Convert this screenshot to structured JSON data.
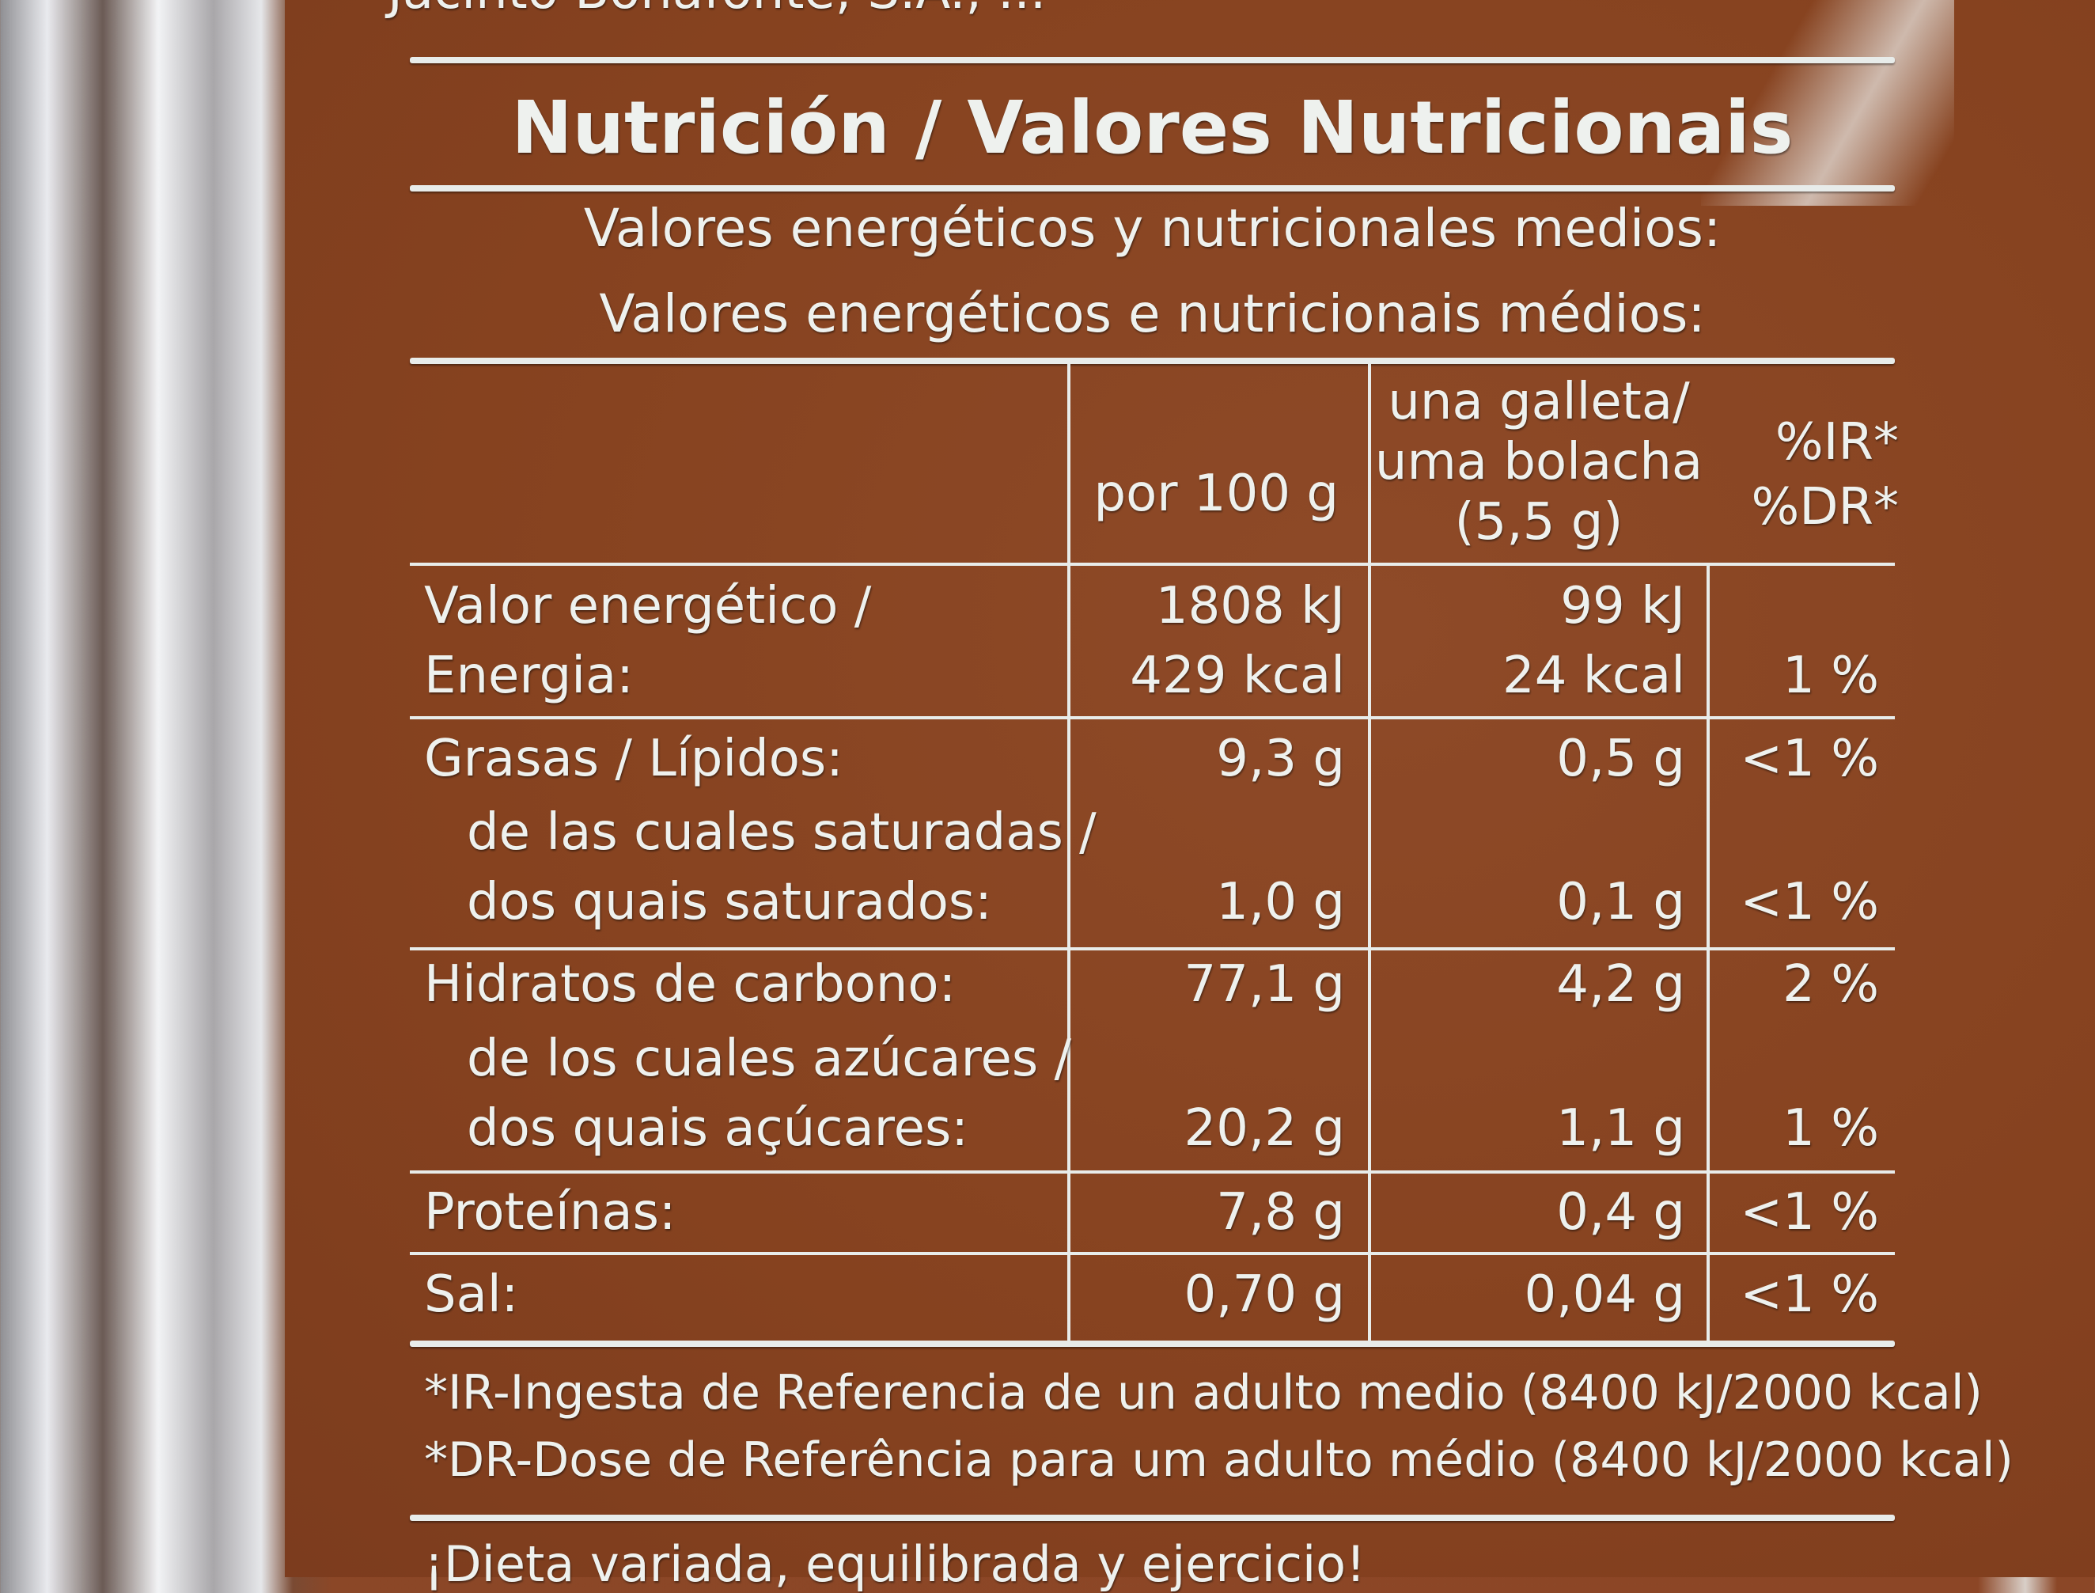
{
  "top_text": "Jacinto Bonafonte, S.A., ...",
  "title": "Nutrición / Valores Nutricionais",
  "subtitle": [
    "Valores energéticos y nutricionales medios:",
    "Valores energéticos e nutricionais médios:"
  ],
  "headers": {
    "per100": "por 100 g",
    "portion": [
      "una galleta/",
      "uma bolacha",
      "(5,5 g)"
    ],
    "ir": [
      "%IR*",
      "%DR*"
    ]
  },
  "rows": [
    {
      "label": [
        "Valor energético /",
        "Energia:"
      ],
      "per100": [
        "1808 kJ",
        "429 kcal"
      ],
      "portion": [
        "99 kJ",
        "24 kcal"
      ],
      "ir": "1 %"
    },
    {
      "label": [
        "Grasas / Lípidos:"
      ],
      "per100": "9,3 g",
      "portion": "0,5 g",
      "ir": "<1 %",
      "sub": {
        "label": [
          "de las cuales saturadas /",
          "dos quais saturados:"
        ],
        "per100": "1,0 g",
        "portion": "0,1 g",
        "ir": "<1 %"
      }
    },
    {
      "label": [
        "Hidratos de carbono:"
      ],
      "per100": "77,1 g",
      "portion": "4,2 g",
      "ir": "2 %",
      "sub": {
        "label": [
          "de los cuales azúcares /",
          "dos quais açúcares:"
        ],
        "per100": "20,2 g",
        "portion": "1,1 g",
        "ir": "1 %"
      }
    },
    {
      "label": [
        "Proteínas:"
      ],
      "per100": "7,8 g",
      "portion": "0,4 g",
      "ir": "<1 %"
    },
    {
      "label": [
        "Sal:"
      ],
      "per100": "0,70 g",
      "portion": "0,04 g",
      "ir": "<1 %"
    }
  ],
  "footnotes": [
    "*IR-Ingesta de Referencia de un adulto medio (8400 kJ/2000 kcal)",
    "*DR-Dose de Referência para um adulto médio (8400 kJ/2000 kcal)"
  ],
  "bottom_text": "¡Dieta variada, equilibrada y ejercicio!"
}
